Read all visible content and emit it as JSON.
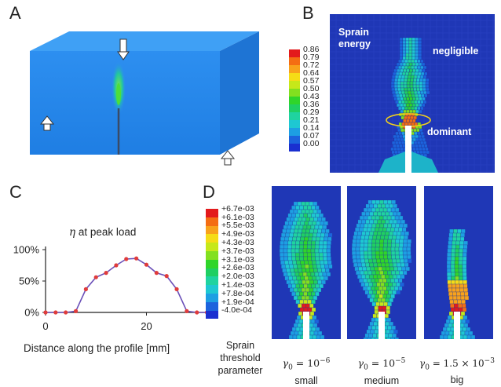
{
  "panels": {
    "A": {
      "label": "A"
    },
    "B": {
      "label": "B",
      "legend_values": [
        "0.86",
        "0.79",
        "0.72",
        "0.64",
        "0.57",
        "0.50",
        "0.43",
        "0.36",
        "0.29",
        "0.21",
        "0.14",
        "0.07",
        "0.00"
      ],
      "legend_colors": [
        "#e31a1c",
        "#f46d13",
        "#f8a21b",
        "#f5dc16",
        "#c6e81a",
        "#82e01f",
        "#2fd52a",
        "#1fcf62",
        "#1fd3a0",
        "#1ec8d2",
        "#1d9fe3",
        "#1c63dd",
        "#1a2fd0"
      ],
      "title_text": [
        "Sprain",
        "energy"
      ],
      "negligible": "negligible",
      "dominant": "dominant"
    },
    "C": {
      "label": "C",
      "title": "at peak load",
      "eta": "η",
      "xlabel": "Distance along the profile [mm]",
      "yticks": [
        "100%",
        "50%",
        "0%"
      ],
      "xticks": [
        "0",
        "20"
      ]
    },
    "D": {
      "label": "D",
      "legend_values": [
        "+6.7e-03",
        "+6.1e-03",
        "+5.5e-03",
        "+4.9e-03",
        "+4.3e-03",
        "+3.7e-03",
        "+3.1e-03",
        "+2.6e-03",
        "+2.0e-03",
        "+1.4e-03",
        "+7.8e-04",
        "+1.9e-04",
        "-4.0e-04"
      ],
      "legend_colors": [
        "#e31a1c",
        "#f46d13",
        "#f8a21b",
        "#f5dc16",
        "#c6e81a",
        "#82e01f",
        "#2fd52a",
        "#1fcf62",
        "#1fd3a0",
        "#1ec8d2",
        "#1d9fe3",
        "#1c63dd",
        "#1a2fd0"
      ],
      "legend_caption": [
        "Sprain",
        "threshold",
        "parameter"
      ],
      "cases": [
        {
          "gamma_base": "γ",
          "gamma_sub": "0",
          "gamma_rest": " = 10",
          "gamma_exp": "−6",
          "size": "small"
        },
        {
          "gamma_base": "γ",
          "gamma_sub": "0",
          "gamma_rest": " = 10",
          "gamma_exp": "−5",
          "size": "medium"
        },
        {
          "gamma_base": "γ",
          "gamma_sub": "0",
          "gamma_rest": " = 1.5 × 10",
          "gamma_exp": "−3",
          "size": "big"
        }
      ]
    }
  },
  "chart_data": {
    "type": "line",
    "title": "η at peak load",
    "xlabel": "Distance along the profile [mm]",
    "ylabel": "η at peak load",
    "xlim": [
      0,
      33
    ],
    "ylim": [
      0,
      100
    ],
    "x": [
      0,
      2,
      4,
      6,
      8,
      10,
      12,
      14,
      16,
      18,
      20,
      22,
      24,
      26,
      28,
      30,
      32
    ],
    "series": [
      {
        "values": [
          0,
          0,
          0,
          2,
          37,
          56,
          63,
          75,
          85,
          86,
          76,
          63,
          58,
          37,
          2,
          0,
          0
        ]
      }
    ]
  }
}
